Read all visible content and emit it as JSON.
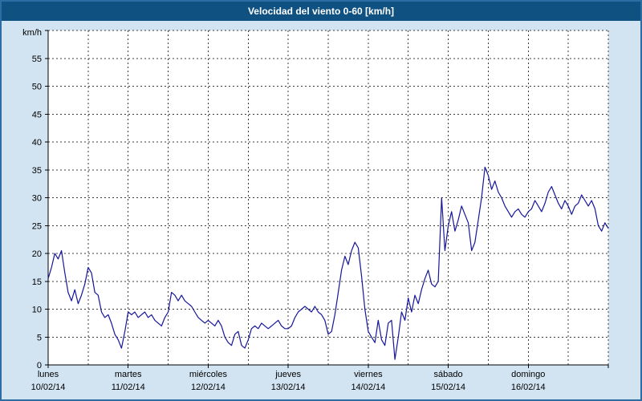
{
  "window": {
    "title_bar": {
      "title": "Velocidad del viento 0-60 [km/h]"
    }
  },
  "colors": {
    "title_bar_bg": "#0f5282",
    "title_text": "#ffffff",
    "frame_border": "#2e6da4",
    "panel_bg": "#d2e4f2",
    "plot_bg": "#ffffff",
    "grid": "#3c3c3c",
    "axis": "#000000",
    "line": "#16169c"
  },
  "chart_data": {
    "type": "line",
    "title": "Velocidad del viento 0-60 [km/h]",
    "ylabel_unit": "km/h",
    "ylim": [
      0,
      60
    ],
    "ytick_step": 5,
    "ytick_labels": [
      0,
      5,
      10,
      15,
      20,
      25,
      30,
      35,
      40,
      45,
      50,
      55
    ],
    "x_days": [
      {
        "name": "lunes",
        "date": "10/02/14"
      },
      {
        "name": "martes",
        "date": "11/02/14"
      },
      {
        "name": "miércoles",
        "date": "12/02/14"
      },
      {
        "name": "jueves",
        "date": "13/02/14"
      },
      {
        "name": "viernes",
        "date": "14/02/14"
      },
      {
        "name": "sábado",
        "date": "15/02/14"
      },
      {
        "name": "domingo",
        "date": "16/02/14"
      }
    ],
    "x_span_days": 7,
    "grid": "dashed",
    "vertical_grid_interval_days": 0.5,
    "legend": "none",
    "series": [
      {
        "name": "velocidad_viento",
        "unit": "km/h",
        "interval_hours": 1,
        "values": [
          15.5,
          17.5,
          20,
          19,
          20.5,
          16.5,
          13,
          11.5,
          13.5,
          11,
          12.5,
          14.5,
          17.5,
          16.5,
          13,
          12.5,
          9.5,
          8.5,
          9,
          7.5,
          5.5,
          4.5,
          3,
          6,
          9.5,
          9,
          9.5,
          8.5,
          9,
          9.5,
          8.5,
          9,
          8,
          7.5,
          7,
          8.5,
          9.5,
          13,
          12.5,
          11.5,
          12.5,
          11.5,
          11,
          10.5,
          9.5,
          8.5,
          8,
          7.5,
          8,
          7.5,
          7,
          8,
          7,
          5,
          4,
          3.5,
          5.5,
          6,
          3.5,
          3,
          4.5,
          6.5,
          7,
          6.5,
          7.5,
          7,
          6.5,
          7,
          7.5,
          8,
          7,
          6.5,
          6.5,
          7,
          8.5,
          9.5,
          10,
          10.5,
          10,
          9.5,
          10.5,
          9.5,
          9,
          8,
          5.5,
          6,
          9,
          13,
          17,
          19.5,
          18,
          20.5,
          22,
          21,
          16,
          10,
          6,
          5,
          4,
          8,
          4.5,
          3.5,
          7.5,
          8,
          1,
          5,
          9.5,
          8,
          12,
          9.5,
          12.5,
          11,
          13.5,
          15.5,
          17,
          14.5,
          14,
          15,
          30,
          20.5,
          25,
          27.5,
          24,
          26,
          28.5,
          27,
          25.5,
          20.5,
          22,
          26,
          30,
          35.5,
          34,
          31.5,
          33,
          31,
          30,
          28.5,
          27.5,
          26.5,
          27.5,
          28,
          27,
          26.5,
          27.5,
          28,
          29.5,
          28.5,
          27.5,
          29,
          31,
          32,
          30.5,
          29,
          28,
          29.5,
          28.5,
          27,
          28.5,
          29,
          30.5,
          29.5,
          28.5,
          29.5,
          28,
          25,
          24,
          25.5,
          24.5
        ]
      }
    ]
  }
}
